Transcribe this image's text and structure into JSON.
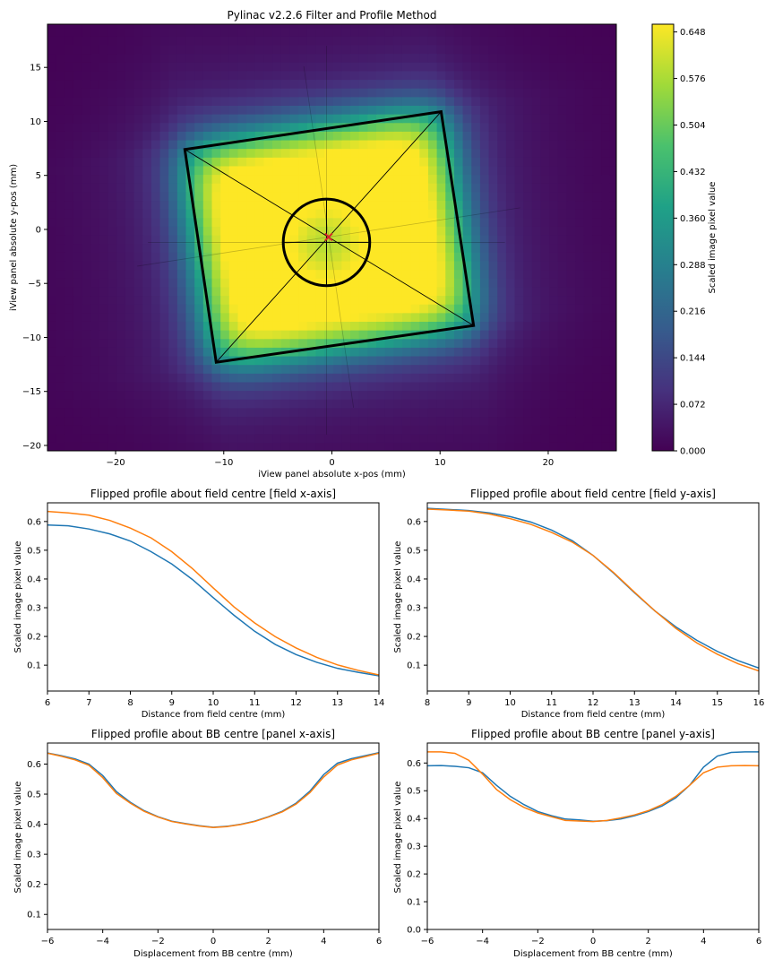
{
  "colors": {
    "series_a": "#1f77b4",
    "series_b": "#ff7f0e",
    "centre_marker": "#d62728",
    "colormap": [
      "#440154",
      "#46327e",
      "#365c8d",
      "#277f8e",
      "#1fa187",
      "#4ac16d",
      "#a0da39",
      "#fde725"
    ]
  },
  "chart_data": [
    {
      "type": "heatmap",
      "title": "Pylinac v2.2.6 Filter and Profile Method",
      "xlabel": "iView panel absolute x-pos (mm)",
      "ylabel": "iView panel absolute y-pos (mm)",
      "xlim": [
        -26.3,
        26.3
      ],
      "ylim": [
        -20.5,
        19
      ],
      "xticks": [
        -20,
        -10,
        0,
        10,
        20
      ],
      "yticks": [
        -20,
        -15,
        -10,
        -5,
        0,
        5,
        10,
        15
      ],
      "colorbar": {
        "label": "Scaled image pixel value",
        "range": [
          0,
          0.66
        ],
        "ticks": [
          "0.000",
          "0.072",
          "0.144",
          "0.216",
          "0.288",
          "0.360",
          "0.432",
          "0.504",
          "0.576",
          "0.648"
        ]
      },
      "field": {
        "corners": [
          [
            -13.6,
            7.4
          ],
          [
            10.1,
            10.9
          ],
          [
            13.1,
            -8.9
          ],
          [
            -10.7,
            -12.3
          ]
        ],
        "centre": [
          -0.3,
          -0.7
        ],
        "field_axis_angle_deg": 8.6,
        "field_width_mm": 24,
        "field_height_mm": 20
      },
      "bb": {
        "centre": [
          -0.5,
          -1.2
        ],
        "radius": 4.0
      },
      "overlay_lines": [
        [
          [
            -18.0,
            -3.4
          ],
          [
            17.4,
            2.0
          ]
        ],
        [
          [
            -17.0,
            -1.2
          ],
          [
            16.0,
            -1.2
          ]
        ],
        [
          [
            -2.6,
            15.1
          ],
          [
            2.0,
            -16.5
          ]
        ],
        [
          [
            -0.5,
            17.0
          ],
          [
            -0.5,
            -19.0
          ]
        ]
      ],
      "intensity_model": {
        "peak": 0.648,
        "bb_dip": 0.26,
        "bb_sigma_mm": 3.0,
        "penumbra_mm": 1.3,
        "halo": 0.11,
        "halo_decay_mm": 6.5
      }
    },
    {
      "type": "line",
      "title": "Flipped profile about field centre [field x-axis]",
      "xlabel": "Distance from field centre (mm)",
      "ylabel": "Scaled image pixel value",
      "xlim": [
        6,
        14
      ],
      "ylim": [
        0.01,
        0.665
      ],
      "xticks": [
        6,
        7,
        8,
        9,
        10,
        11,
        12,
        13,
        14
      ],
      "yticks": [
        0.1,
        0.2,
        0.3,
        0.4,
        0.5,
        0.6
      ],
      "x": [
        6,
        6.5,
        7,
        7.5,
        8,
        8.5,
        9,
        9.5,
        10,
        10.5,
        11,
        11.5,
        12,
        12.5,
        13,
        13.5,
        14
      ],
      "series": [
        {
          "values": [
            0.588,
            0.585,
            0.574,
            0.557,
            0.532,
            0.495,
            0.452,
            0.398,
            0.335,
            0.274,
            0.218,
            0.172,
            0.137,
            0.11,
            0.089,
            0.075,
            0.063
          ]
        },
        {
          "values": [
            0.635,
            0.63,
            0.622,
            0.604,
            0.577,
            0.543,
            0.495,
            0.436,
            0.369,
            0.303,
            0.247,
            0.199,
            0.16,
            0.127,
            0.101,
            0.082,
            0.066
          ]
        }
      ]
    },
    {
      "type": "line",
      "title": "Flipped profile about field centre [field y-axis]",
      "xlabel": "Distance from field centre (mm)",
      "ylabel": "Scaled image pixel value",
      "xlim": [
        8,
        16
      ],
      "ylim": [
        0.01,
        0.665
      ],
      "xticks": [
        8,
        9,
        10,
        11,
        12,
        13,
        14,
        15,
        16
      ],
      "yticks": [
        0.1,
        0.2,
        0.3,
        0.4,
        0.5,
        0.6
      ],
      "x": [
        8,
        8.5,
        9,
        9.5,
        10,
        10.5,
        11,
        11.5,
        12,
        12.5,
        13,
        13.5,
        14,
        14.5,
        15,
        15.5,
        16
      ],
      "series": [
        {
          "values": [
            0.646,
            0.642,
            0.638,
            0.63,
            0.617,
            0.598,
            0.57,
            0.533,
            0.482,
            0.42,
            0.352,
            0.288,
            0.233,
            0.187,
            0.148,
            0.116,
            0.09
          ]
        },
        {
          "values": [
            0.643,
            0.64,
            0.636,
            0.626,
            0.61,
            0.59,
            0.562,
            0.528,
            0.482,
            0.422,
            0.354,
            0.288,
            0.228,
            0.178,
            0.138,
            0.105,
            0.08
          ]
        }
      ]
    },
    {
      "type": "line",
      "title": "Flipped profile about BB centre [panel x-axis]",
      "xlabel": "Displacement from BB centre (mm)",
      "ylabel": "Scaled image pixel value",
      "xlim": [
        -6,
        6
      ],
      "ylim": [
        0.05,
        0.67
      ],
      "xticks": [
        -6,
        -4,
        -2,
        0,
        2,
        4,
        6
      ],
      "yticks": [
        0.1,
        0.2,
        0.3,
        0.4,
        0.5,
        0.6
      ],
      "x": [
        -6,
        -5.5,
        -5,
        -4.5,
        -4,
        -3.5,
        -3,
        -2.5,
        -2,
        -1.5,
        -1,
        -0.5,
        0,
        0.5,
        1,
        1.5,
        2,
        2.5,
        3,
        3.5,
        4,
        4.5,
        5,
        5.5,
        6
      ],
      "series": [
        {
          "values": [
            0.637,
            0.628,
            0.617,
            0.6,
            0.562,
            0.508,
            0.473,
            0.445,
            0.425,
            0.41,
            0.402,
            0.395,
            0.39,
            0.393,
            0.4,
            0.41,
            0.425,
            0.443,
            0.47,
            0.51,
            0.565,
            0.603,
            0.618,
            0.628,
            0.638
          ]
        },
        {
          "values": [
            0.636,
            0.626,
            0.614,
            0.596,
            0.555,
            0.502,
            0.47,
            0.443,
            0.424,
            0.409,
            0.401,
            0.394,
            0.389,
            0.392,
            0.399,
            0.409,
            0.424,
            0.441,
            0.467,
            0.505,
            0.557,
            0.597,
            0.614,
            0.625,
            0.636
          ]
        }
      ]
    },
    {
      "type": "line",
      "title": "Flipped profile about BB centre [panel y-axis]",
      "xlabel": "Displacement from BB centre (mm)",
      "ylabel": "Scaled image pixel value",
      "xlim": [
        -6,
        6
      ],
      "ylim": [
        0,
        0.672
      ],
      "xticks": [
        -6,
        -4,
        -2,
        0,
        2,
        4,
        6
      ],
      "yticks": [
        0.0,
        0.1,
        0.2,
        0.3,
        0.4,
        0.5,
        0.6
      ],
      "x": [
        -6,
        -5.5,
        -5,
        -4.5,
        -4,
        -3.5,
        -3,
        -2.5,
        -2,
        -1.5,
        -1,
        -0.5,
        0,
        0.5,
        1,
        1.5,
        2,
        2.5,
        3,
        3.5,
        4,
        4.5,
        5,
        5.5,
        6
      ],
      "series": [
        {
          "values": [
            0.59,
            0.591,
            0.588,
            0.583,
            0.565,
            0.52,
            0.48,
            0.45,
            0.425,
            0.41,
            0.398,
            0.395,
            0.39,
            0.392,
            0.398,
            0.41,
            0.425,
            0.445,
            0.475,
            0.52,
            0.585,
            0.625,
            0.638,
            0.64,
            0.64
          ]
        },
        {
          "values": [
            0.64,
            0.64,
            0.635,
            0.61,
            0.56,
            0.505,
            0.468,
            0.44,
            0.42,
            0.406,
            0.393,
            0.391,
            0.389,
            0.393,
            0.402,
            0.413,
            0.428,
            0.45,
            0.48,
            0.52,
            0.565,
            0.585,
            0.59,
            0.591,
            0.59
          ]
        }
      ]
    }
  ]
}
